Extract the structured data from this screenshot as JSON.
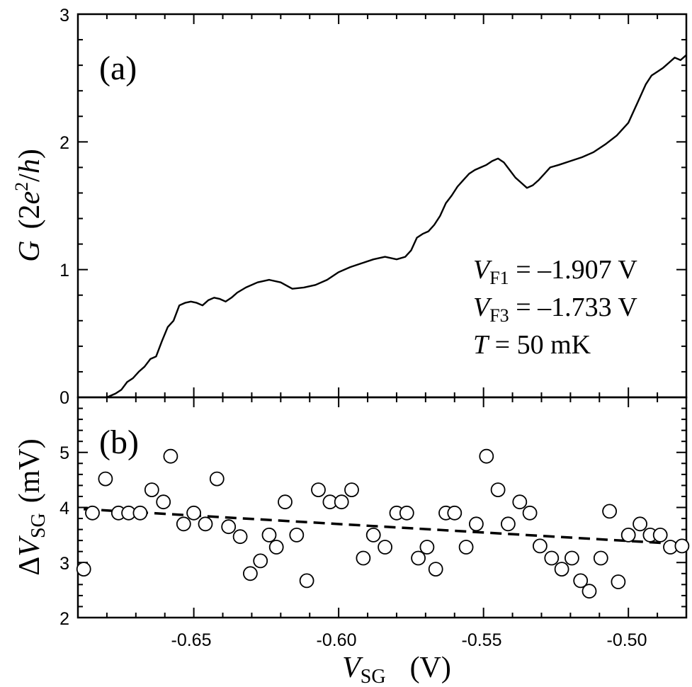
{
  "chart_data": [
    {
      "id": "a",
      "type": "line",
      "panel_label": "(a)",
      "ylabel": {
        "symbol": "G",
        "unit_pre": "(2",
        "unit_e": "e",
        "unit_exp": "2",
        "unit_slash": "/",
        "unit_h": "h",
        "unit_post": ")"
      },
      "xlim": [
        -0.69,
        -0.48
      ],
      "ylim": [
        0,
        3
      ],
      "yticks": [
        "0",
        "1",
        "2",
        "3"
      ],
      "grid": false,
      "annotations": [
        {
          "var": "V",
          "sub": "F1",
          "text": " = –1.907 V"
        },
        {
          "var": "V",
          "sub": "F3",
          "text": " = –1.733 V"
        },
        {
          "var": "T",
          "sub": "",
          "text": " = 50 mK"
        }
      ],
      "series": [
        {
          "name": "G",
          "x": [
            -0.68,
            -0.677,
            -0.675,
            -0.673,
            -0.671,
            -0.669,
            -0.667,
            -0.665,
            -0.663,
            -0.661,
            -0.659,
            -0.657,
            -0.655,
            -0.653,
            -0.651,
            -0.649,
            -0.647,
            -0.645,
            -0.643,
            -0.641,
            -0.639,
            -0.637,
            -0.635,
            -0.632,
            -0.628,
            -0.624,
            -0.62,
            -0.616,
            -0.612,
            -0.608,
            -0.604,
            -0.6,
            -0.596,
            -0.592,
            -0.588,
            -0.584,
            -0.58,
            -0.577,
            -0.575,
            -0.573,
            -0.571,
            -0.569,
            -0.567,
            -0.565,
            -0.563,
            -0.561,
            -0.559,
            -0.557,
            -0.555,
            -0.553,
            -0.551,
            -0.549,
            -0.547,
            -0.545,
            -0.543,
            -0.541,
            -0.539,
            -0.537,
            -0.535,
            -0.533,
            -0.531,
            -0.529,
            -0.527,
            -0.524,
            -0.52,
            -0.516,
            -0.512,
            -0.508,
            -0.504,
            -0.5,
            -0.496,
            -0.494,
            -0.492,
            -0.49,
            -0.488,
            -0.486,
            -0.484,
            -0.482,
            -0.48
          ],
          "y": [
            0.0,
            0.03,
            0.06,
            0.12,
            0.15,
            0.2,
            0.24,
            0.3,
            0.32,
            0.44,
            0.55,
            0.6,
            0.72,
            0.74,
            0.75,
            0.74,
            0.72,
            0.76,
            0.78,
            0.77,
            0.75,
            0.78,
            0.82,
            0.86,
            0.9,
            0.92,
            0.9,
            0.85,
            0.86,
            0.88,
            0.92,
            0.98,
            1.02,
            1.05,
            1.08,
            1.1,
            1.08,
            1.1,
            1.15,
            1.25,
            1.28,
            1.3,
            1.35,
            1.42,
            1.52,
            1.58,
            1.65,
            1.7,
            1.75,
            1.78,
            1.8,
            1.82,
            1.85,
            1.87,
            1.84,
            1.78,
            1.72,
            1.68,
            1.64,
            1.66,
            1.7,
            1.75,
            1.8,
            1.82,
            1.85,
            1.88,
            1.92,
            1.98,
            2.05,
            2.15,
            2.35,
            2.45,
            2.52,
            2.55,
            2.58,
            2.62,
            2.66,
            2.64,
            2.68
          ]
        }
      ]
    },
    {
      "id": "b",
      "type": "scatter",
      "panel_label": "(b)",
      "ylabel": {
        "prefix": "Δ",
        "symbol": "V",
        "sub": "SG",
        "unit": "(mV)"
      },
      "xlabel": {
        "symbol": "V",
        "sub": "SG",
        "unit": "(V)"
      },
      "xlim": [
        -0.69,
        -0.48
      ],
      "ylim": [
        2,
        6
      ],
      "xticks": [
        -0.65,
        -0.6,
        -0.55,
        -0.5
      ],
      "xtick_labels": [
        "-0.65",
        "-0.60",
        "-0.55",
        "-0.50"
      ],
      "yticks": [
        "2",
        "3",
        "4",
        "5"
      ],
      "grid": false,
      "series": [
        {
          "name": "ΔV_SG",
          "marker": "open-circle",
          "x": [
            -0.688,
            -0.685,
            -0.6805,
            -0.676,
            -0.6725,
            -0.6685,
            -0.6645,
            -0.6605,
            -0.658,
            -0.6535,
            -0.65,
            -0.646,
            -0.642,
            -0.638,
            -0.634,
            -0.6305,
            -0.627,
            -0.624,
            -0.6215,
            -0.6185,
            -0.6145,
            -0.611,
            -0.607,
            -0.603,
            -0.599,
            -0.5955,
            -0.5915,
            -0.588,
            -0.584,
            -0.58,
            -0.5765,
            -0.5725,
            -0.5695,
            -0.5665,
            -0.563,
            -0.56,
            -0.556,
            -0.5525,
            -0.549,
            -0.545,
            -0.5415,
            -0.5375,
            -0.534,
            -0.5305,
            -0.5265,
            -0.523,
            -0.5195,
            -0.5165,
            -0.5135,
            -0.5095,
            -0.5065,
            -0.5035,
            -0.5,
            -0.496,
            -0.4925,
            -0.489,
            -0.4855,
            -0.4815
          ],
          "y": [
            2.88,
            3.9,
            4.52,
            3.9,
            3.9,
            3.9,
            4.32,
            4.1,
            4.93,
            3.7,
            3.9,
            3.7,
            4.52,
            3.65,
            3.47,
            2.8,
            3.03,
            3.5,
            3.28,
            4.1,
            3.5,
            2.67,
            4.32,
            4.1,
            4.1,
            4.32,
            3.08,
            3.5,
            3.28,
            3.9,
            3.9,
            3.08,
            3.28,
            2.88,
            3.9,
            3.9,
            3.28,
            3.7,
            4.93,
            4.32,
            3.7,
            4.1,
            3.9,
            3.3,
            3.08,
            2.88,
            3.08,
            2.67,
            2.48,
            3.08,
            3.93,
            2.65,
            3.5,
            3.7,
            3.5,
            3.5,
            3.28,
            3.3
          ]
        },
        {
          "name": "fit",
          "line_style": "dashed",
          "x": [
            -0.688,
            -0.48
          ],
          "y": [
            3.97,
            3.33
          ]
        }
      ]
    }
  ]
}
